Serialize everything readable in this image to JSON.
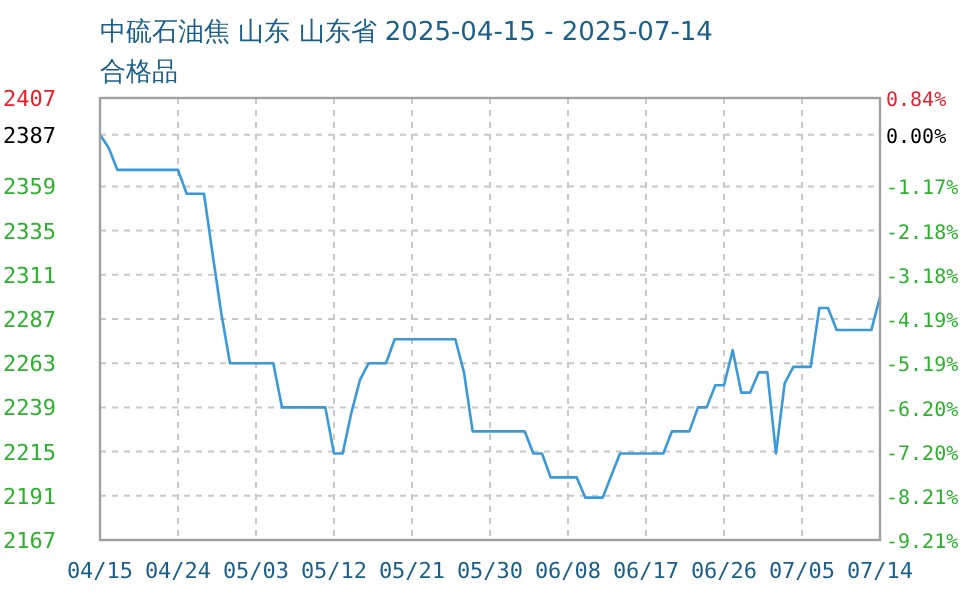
{
  "chart_data": {
    "type": "line",
    "title": "中硫石油焦 山东 山东省 2025-04-15 - 2025-07-14",
    "subtitle": "合格品",
    "x": [
      "2025-04-15",
      "2025-04-16",
      "2025-04-17",
      "2025-04-24",
      "2025-04-25",
      "2025-04-27",
      "2025-04-28",
      "2025-04-29",
      "2025-04-30",
      "2025-05-05",
      "2025-05-06",
      "2025-05-11",
      "2025-05-12",
      "2025-05-13",
      "2025-05-14",
      "2025-05-15",
      "2025-05-16",
      "2025-05-18",
      "2025-05-19",
      "2025-05-26",
      "2025-05-27",
      "2025-05-28",
      "2025-06-03",
      "2025-06-04",
      "2025-06-05",
      "2025-06-06",
      "2025-06-09",
      "2025-06-10",
      "2025-06-12",
      "2025-06-14",
      "2025-06-19",
      "2025-06-20",
      "2025-06-22",
      "2025-06-23",
      "2025-06-24",
      "2025-06-25",
      "2025-06-26",
      "2025-06-27",
      "2025-06-28",
      "2025-06-29",
      "2025-06-30",
      "2025-07-01",
      "2025-07-02",
      "2025-07-03",
      "2025-07-04",
      "2025-07-06",
      "2025-07-07",
      "2025-07-08",
      "2025-07-09",
      "2025-07-13",
      "2025-07-14"
    ],
    "series": [
      {
        "color": "#3a9ad9",
        "values": [
          2387,
          2380,
          2368,
          2368,
          2355,
          2355,
          2322,
          2290,
          2263,
          2263,
          2239,
          2239,
          2214,
          2214,
          2236,
          2254,
          2263,
          2263,
          2276,
          2276,
          2258,
          2226,
          2226,
          2214,
          2214,
          2201,
          2201,
          2190,
          2190,
          2214,
          2214,
          2226,
          2226,
          2239,
          2239,
          2251,
          2251,
          2270,
          2247,
          2247,
          2258,
          2258,
          2214,
          2252,
          2261,
          2261,
          2293,
          2293,
          2281,
          2281,
          2299
        ]
      }
    ],
    "xlim": [
      "2025-04-15",
      "2025-07-14"
    ],
    "xticks": [
      {
        "value": "2025-04-15",
        "label": "04/15"
      },
      {
        "value": "2025-04-24",
        "label": "04/24"
      },
      {
        "value": "2025-05-03",
        "label": "05/03"
      },
      {
        "value": "2025-05-12",
        "label": "05/12"
      },
      {
        "value": "2025-05-21",
        "label": "05/21"
      },
      {
        "value": "2025-05-30",
        "label": "05/30"
      },
      {
        "value": "2025-06-08",
        "label": "06/08"
      },
      {
        "value": "2025-06-17",
        "label": "06/17"
      },
      {
        "value": "2025-06-26",
        "label": "06/26"
      },
      {
        "value": "2025-07-05",
        "label": "07/05"
      },
      {
        "value": "2025-07-14",
        "label": "07/14"
      }
    ],
    "ylim": [
      2167,
      2407
    ],
    "yticks": [
      2407,
      2387,
      2359,
      2335,
      2311,
      2287,
      2263,
      2239,
      2215,
      2191,
      2167
    ],
    "y2lim": [
      -9.21,
      0.84
    ],
    "y2ticks": [
      {
        "value": 0.84,
        "label": "0.84%"
      },
      {
        "value": 0,
        "label": "0.00%"
      },
      {
        "value": -1.17,
        "label": "-1.17%"
      },
      {
        "value": -2.18,
        "label": "-2.18%"
      },
      {
        "value": -3.18,
        "label": "-3.18%"
      },
      {
        "value": -4.19,
        "label": "-4.19%"
      },
      {
        "value": -5.19,
        "label": "-5.19%"
      },
      {
        "value": -6.2,
        "label": "-6.20%"
      },
      {
        "value": -7.2,
        "label": "-7.20%"
      },
      {
        "value": -8.21,
        "label": "-8.21%"
      },
      {
        "value": -9.21,
        "label": "-9.21%"
      }
    ],
    "grid": true,
    "marker": "none",
    "line_style": "solid"
  }
}
